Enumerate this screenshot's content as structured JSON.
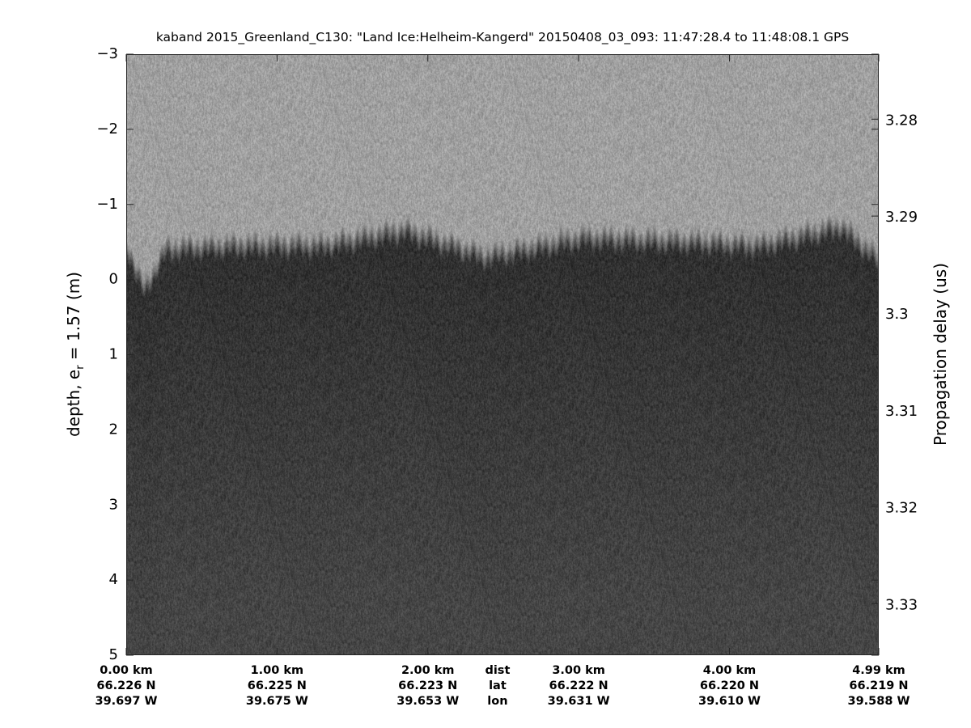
{
  "chart_data": {
    "type": "heatmap",
    "title": "kaband 2015_Greenland_C130: \"Land Ice:Helheim-Kangerd\"  20150408_03_093: 11:47:28.4 to 11:48:08.1 GPS",
    "ylabel_left": {
      "main": "depth, e",
      "sub": "r",
      "rest": " = 1.57 (m)"
    },
    "ylabel_right": "Propagation delay (us)",
    "ylim_left": [
      -3,
      5
    ],
    "yticks_left": [
      "-3",
      "-2",
      "-1",
      "0",
      "1",
      "2",
      "3",
      "4",
      "5"
    ],
    "ylim_right": [
      3.2733,
      3.3353
    ],
    "yticks_right": [
      "3.28",
      "3.29",
      "3.3",
      "3.31",
      "3.32",
      "3.33"
    ],
    "xlim_km": [
      0,
      4.99
    ],
    "colormap": "gray",
    "x_labels": [
      {
        "km": 0.0,
        "dist": "0.00 km",
        "lat": "66.226 N",
        "lon": "39.697 W"
      },
      {
        "km": 1.0,
        "dist": "1.00 km",
        "lat": "66.225 N",
        "lon": "39.675 W"
      },
      {
        "km": 2.0,
        "dist": "2.00 km",
        "lat": "66.223 N",
        "lon": "39.653 W"
      },
      {
        "km": 3.0,
        "dist": "3.00 km",
        "lat": "66.222 N",
        "lon": "39.631 W"
      },
      {
        "km": 4.0,
        "dist": "4.00 km",
        "lat": "66.220 N",
        "lon": "39.610 W"
      },
      {
        "km": 4.99,
        "dist": "4.99 km",
        "lat": "66.219 N",
        "lon": "39.588 W"
      }
    ],
    "row_labels": {
      "km": 2.5,
      "dist": "dist",
      "lat": "lat",
      "lon": "lon"
    },
    "surface_depth_m": {
      "km": [
        0.0,
        0.12,
        0.26,
        0.77,
        1.3,
        1.85,
        2.38,
        3.03,
        3.72,
        4.2,
        4.74,
        4.99
      ],
      "depth": [
        -0.6,
        0.0,
        -0.55,
        -0.6,
        -0.6,
        -0.8,
        -0.45,
        -0.7,
        -0.65,
        -0.6,
        -0.85,
        -0.4
      ]
    }
  }
}
